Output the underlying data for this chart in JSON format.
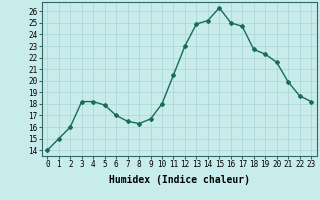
{
  "title": "",
  "xlabel": "Humidex (Indice chaleur)",
  "ylabel": "",
  "x": [
    0,
    1,
    2,
    3,
    4,
    5,
    6,
    7,
    8,
    9,
    10,
    11,
    12,
    13,
    14,
    15,
    16,
    17,
    18,
    19,
    20,
    21,
    22,
    23
  ],
  "y": [
    14,
    15,
    16,
    18.2,
    18.2,
    17.9,
    17.0,
    16.5,
    16.3,
    16.7,
    18.0,
    20.5,
    23.0,
    24.9,
    25.2,
    26.3,
    25.0,
    24.7,
    22.7,
    22.3,
    21.6,
    19.9,
    18.7,
    18.2
  ],
  "line_color": "#1a6b5a",
  "marker": "D",
  "marker_size": 2.0,
  "bg_color": "#c8ecec",
  "grid_color": "#aad4d4",
  "ylim": [
    13.5,
    26.8
  ],
  "xlim": [
    -0.5,
    23.5
  ],
  "yticks": [
    14,
    15,
    16,
    17,
    18,
    19,
    20,
    21,
    22,
    23,
    24,
    25,
    26
  ],
  "xticks": [
    0,
    1,
    2,
    3,
    4,
    5,
    6,
    7,
    8,
    9,
    10,
    11,
    12,
    13,
    14,
    15,
    16,
    17,
    18,
    19,
    20,
    21,
    22,
    23
  ],
  "tick_fontsize": 5.5,
  "xlabel_fontsize": 7.0,
  "linewidth": 1.0
}
